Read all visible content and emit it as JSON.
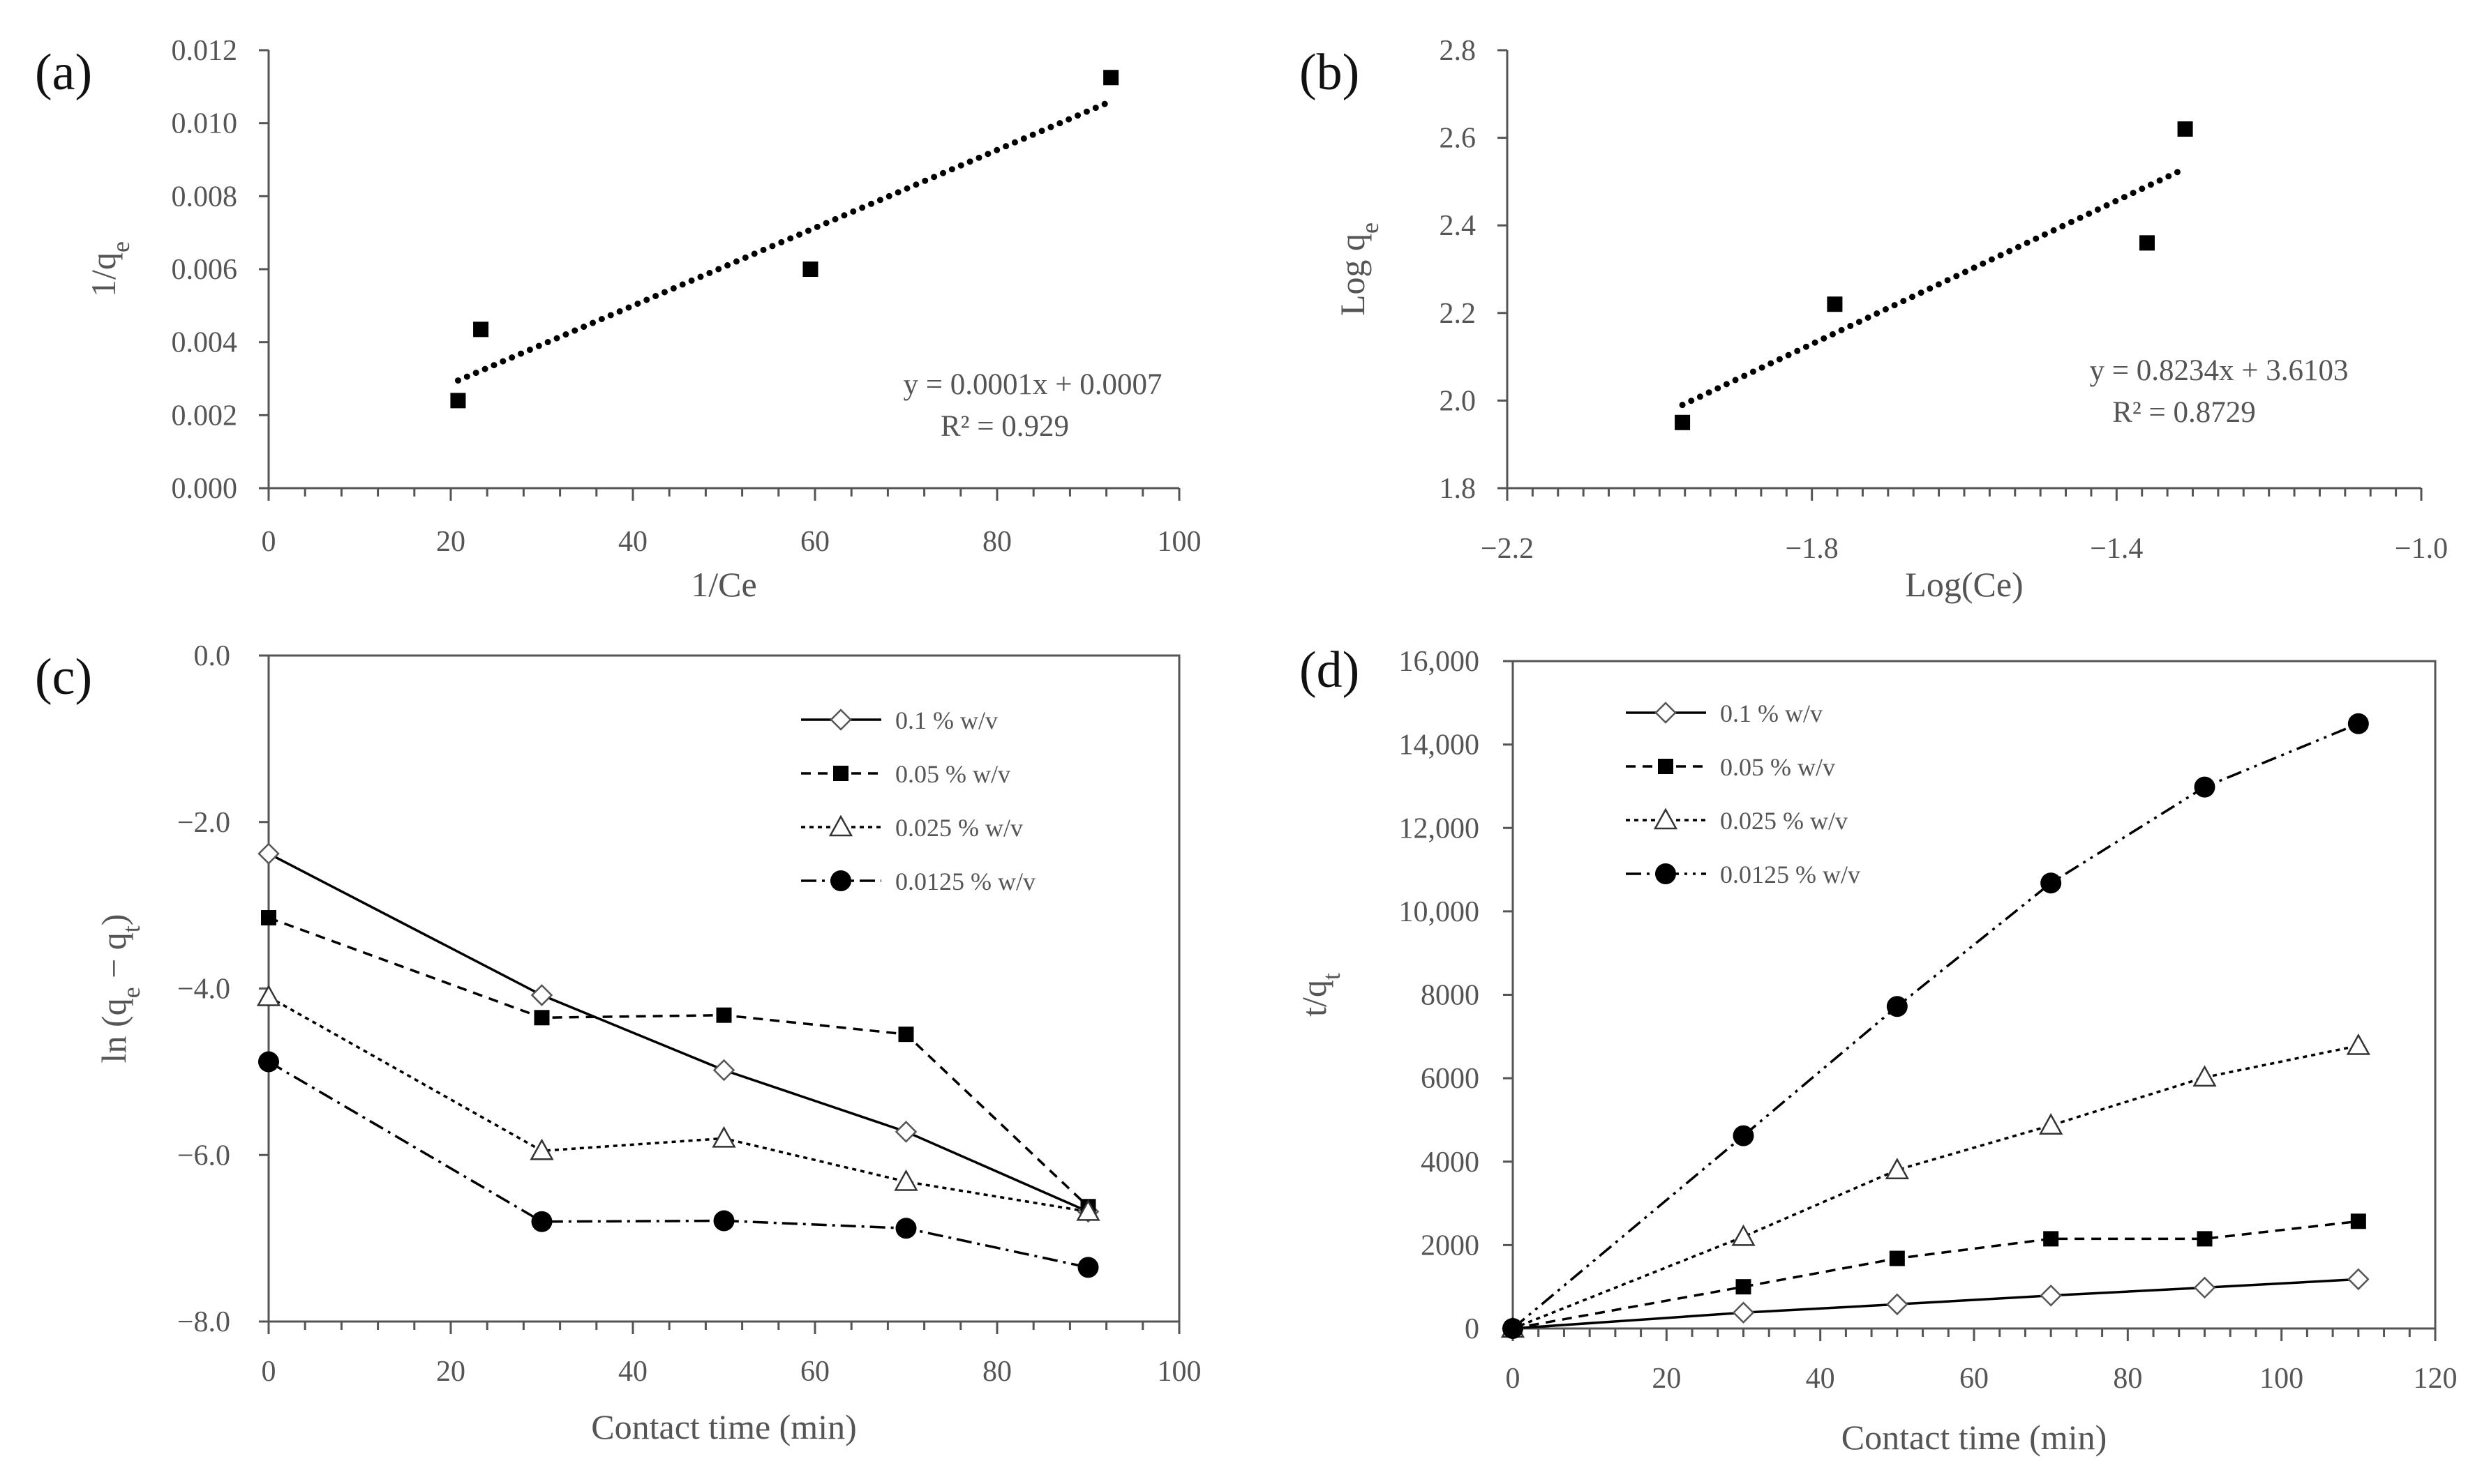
{
  "chart_data": [
    {
      "panel": "(a)",
      "type": "scatter",
      "xlabel": "1/Ce",
      "ylabel": "1/q",
      "ylabel_sub": "e",
      "xlim": [
        0,
        100
      ],
      "ylim": [
        0,
        0.012
      ],
      "xticks": [
        "0",
        "20",
        "40",
        "60",
        "80",
        "100"
      ],
      "yticks": [
        "0.000",
        "0.002",
        "0.004",
        "0.006",
        "0.008",
        "0.010",
        "0.012"
      ],
      "points": [
        {
          "x": 20.8,
          "y": 0.0024
        },
        {
          "x": 23.3,
          "y": 0.00435
        },
        {
          "x": 59.5,
          "y": 0.006
        },
        {
          "x": 92.5,
          "y": 0.01125
        }
      ],
      "trendline": {
        "x": [
          20.8,
          92.5
        ],
        "y": [
          0.00295,
          0.0106
        ]
      },
      "equation": "y = 0.0001x + 0.0007",
      "r2": "R² = 0.929"
    },
    {
      "panel": "(b)",
      "type": "scatter",
      "xlabel": "Log(Ce)",
      "ylabel": "Log q",
      "ylabel_sub": "e",
      "xlim": [
        -2.2,
        -1.0
      ],
      "ylim": [
        1.8,
        2.8
      ],
      "xticks": [
        "−2.2",
        "−1.8",
        "−1.4",
        "−1.0"
      ],
      "yticks": [
        "1.8",
        "2.0",
        "2.2",
        "2.4",
        "2.6",
        "2.8"
      ],
      "points": [
        {
          "x": -1.97,
          "y": 1.95
        },
        {
          "x": -1.77,
          "y": 2.22
        },
        {
          "x": -1.36,
          "y": 2.36
        },
        {
          "x": -1.31,
          "y": 2.62
        }
      ],
      "trendline": {
        "x": [
          -1.97,
          -1.31
        ],
        "y": [
          1.99,
          2.53
        ]
      },
      "equation": "y = 0.8234x + 3.6103",
      "r2": "R² = 0.8729"
    },
    {
      "panel": "(c)",
      "type": "line",
      "xlabel": "Contact time (min)",
      "ylabel": "ln (q",
      "ylabel_sub1": "e",
      "ylabel_mid": " − q",
      "ylabel_sub2": "t",
      "ylabel_end": ")",
      "xlim": [
        0,
        100
      ],
      "ylim": [
        -8,
        0
      ],
      "xticks": [
        "0",
        "20",
        "40",
        "60",
        "80",
        "100"
      ],
      "yticks": [
        "−8.0",
        "−6.0",
        "−4.0",
        "−2.0",
        "0.0"
      ],
      "x": [
        0,
        30,
        50,
        70,
        90
      ],
      "series": [
        {
          "name": "0.1 % w/v",
          "marker": "diamond",
          "dash": "",
          "values": [
            -2.38,
            -4.08,
            -4.98,
            -5.72,
            -6.68
          ]
        },
        {
          "name": "0.05 % w/v",
          "marker": "square",
          "dash": "14 10",
          "values": [
            -3.15,
            -4.35,
            -4.32,
            -4.55,
            -6.62
          ]
        },
        {
          "name": "0.025 % w/v",
          "marker": "triangle",
          "dash": "6 6",
          "values": [
            -4.1,
            -5.95,
            -5.8,
            -6.32,
            -6.68
          ]
        },
        {
          "name": "0.0125 % w/v",
          "marker": "circle",
          "dash": "22 8 4 8",
          "values": [
            -4.88,
            -6.8,
            -6.79,
            -6.88,
            -7.35
          ]
        }
      ]
    },
    {
      "panel": "(d)",
      "type": "line",
      "xlabel": "Contact time (min)",
      "ylabel": "t/q",
      "ylabel_sub": "t",
      "xlim": [
        0,
        120
      ],
      "ylim": [
        0,
        16000
      ],
      "xticks": [
        "0",
        "20",
        "40",
        "60",
        "80",
        "100",
        "120"
      ],
      "yticks": [
        "0",
        "2000",
        "4000",
        "6000",
        "8000",
        "10,000",
        "12,000",
        "14,000",
        "16,000"
      ],
      "x": [
        0,
        30,
        50,
        70,
        90,
        110
      ],
      "series": [
        {
          "name": "0.1 % w/v",
          "marker": "diamond",
          "dash": "",
          "values": [
            0,
            380,
            580,
            790,
            980,
            1180
          ]
        },
        {
          "name": "0.05 % w/v",
          "marker": "square",
          "dash": "14 10",
          "values": [
            0,
            1000,
            1680,
            2150,
            2150,
            2570
          ]
        },
        {
          "name": "0.025 % w/v",
          "marker": "triangle",
          "dash": "6 6",
          "values": [
            0,
            2200,
            3800,
            4870,
            6020,
            6780
          ]
        },
        {
          "name": "0.0125 % w/v",
          "marker": "circle",
          "dash": "22 8 4 8 4 8",
          "values": [
            0,
            4620,
            7720,
            10680,
            12980,
            14500
          ]
        }
      ]
    }
  ]
}
